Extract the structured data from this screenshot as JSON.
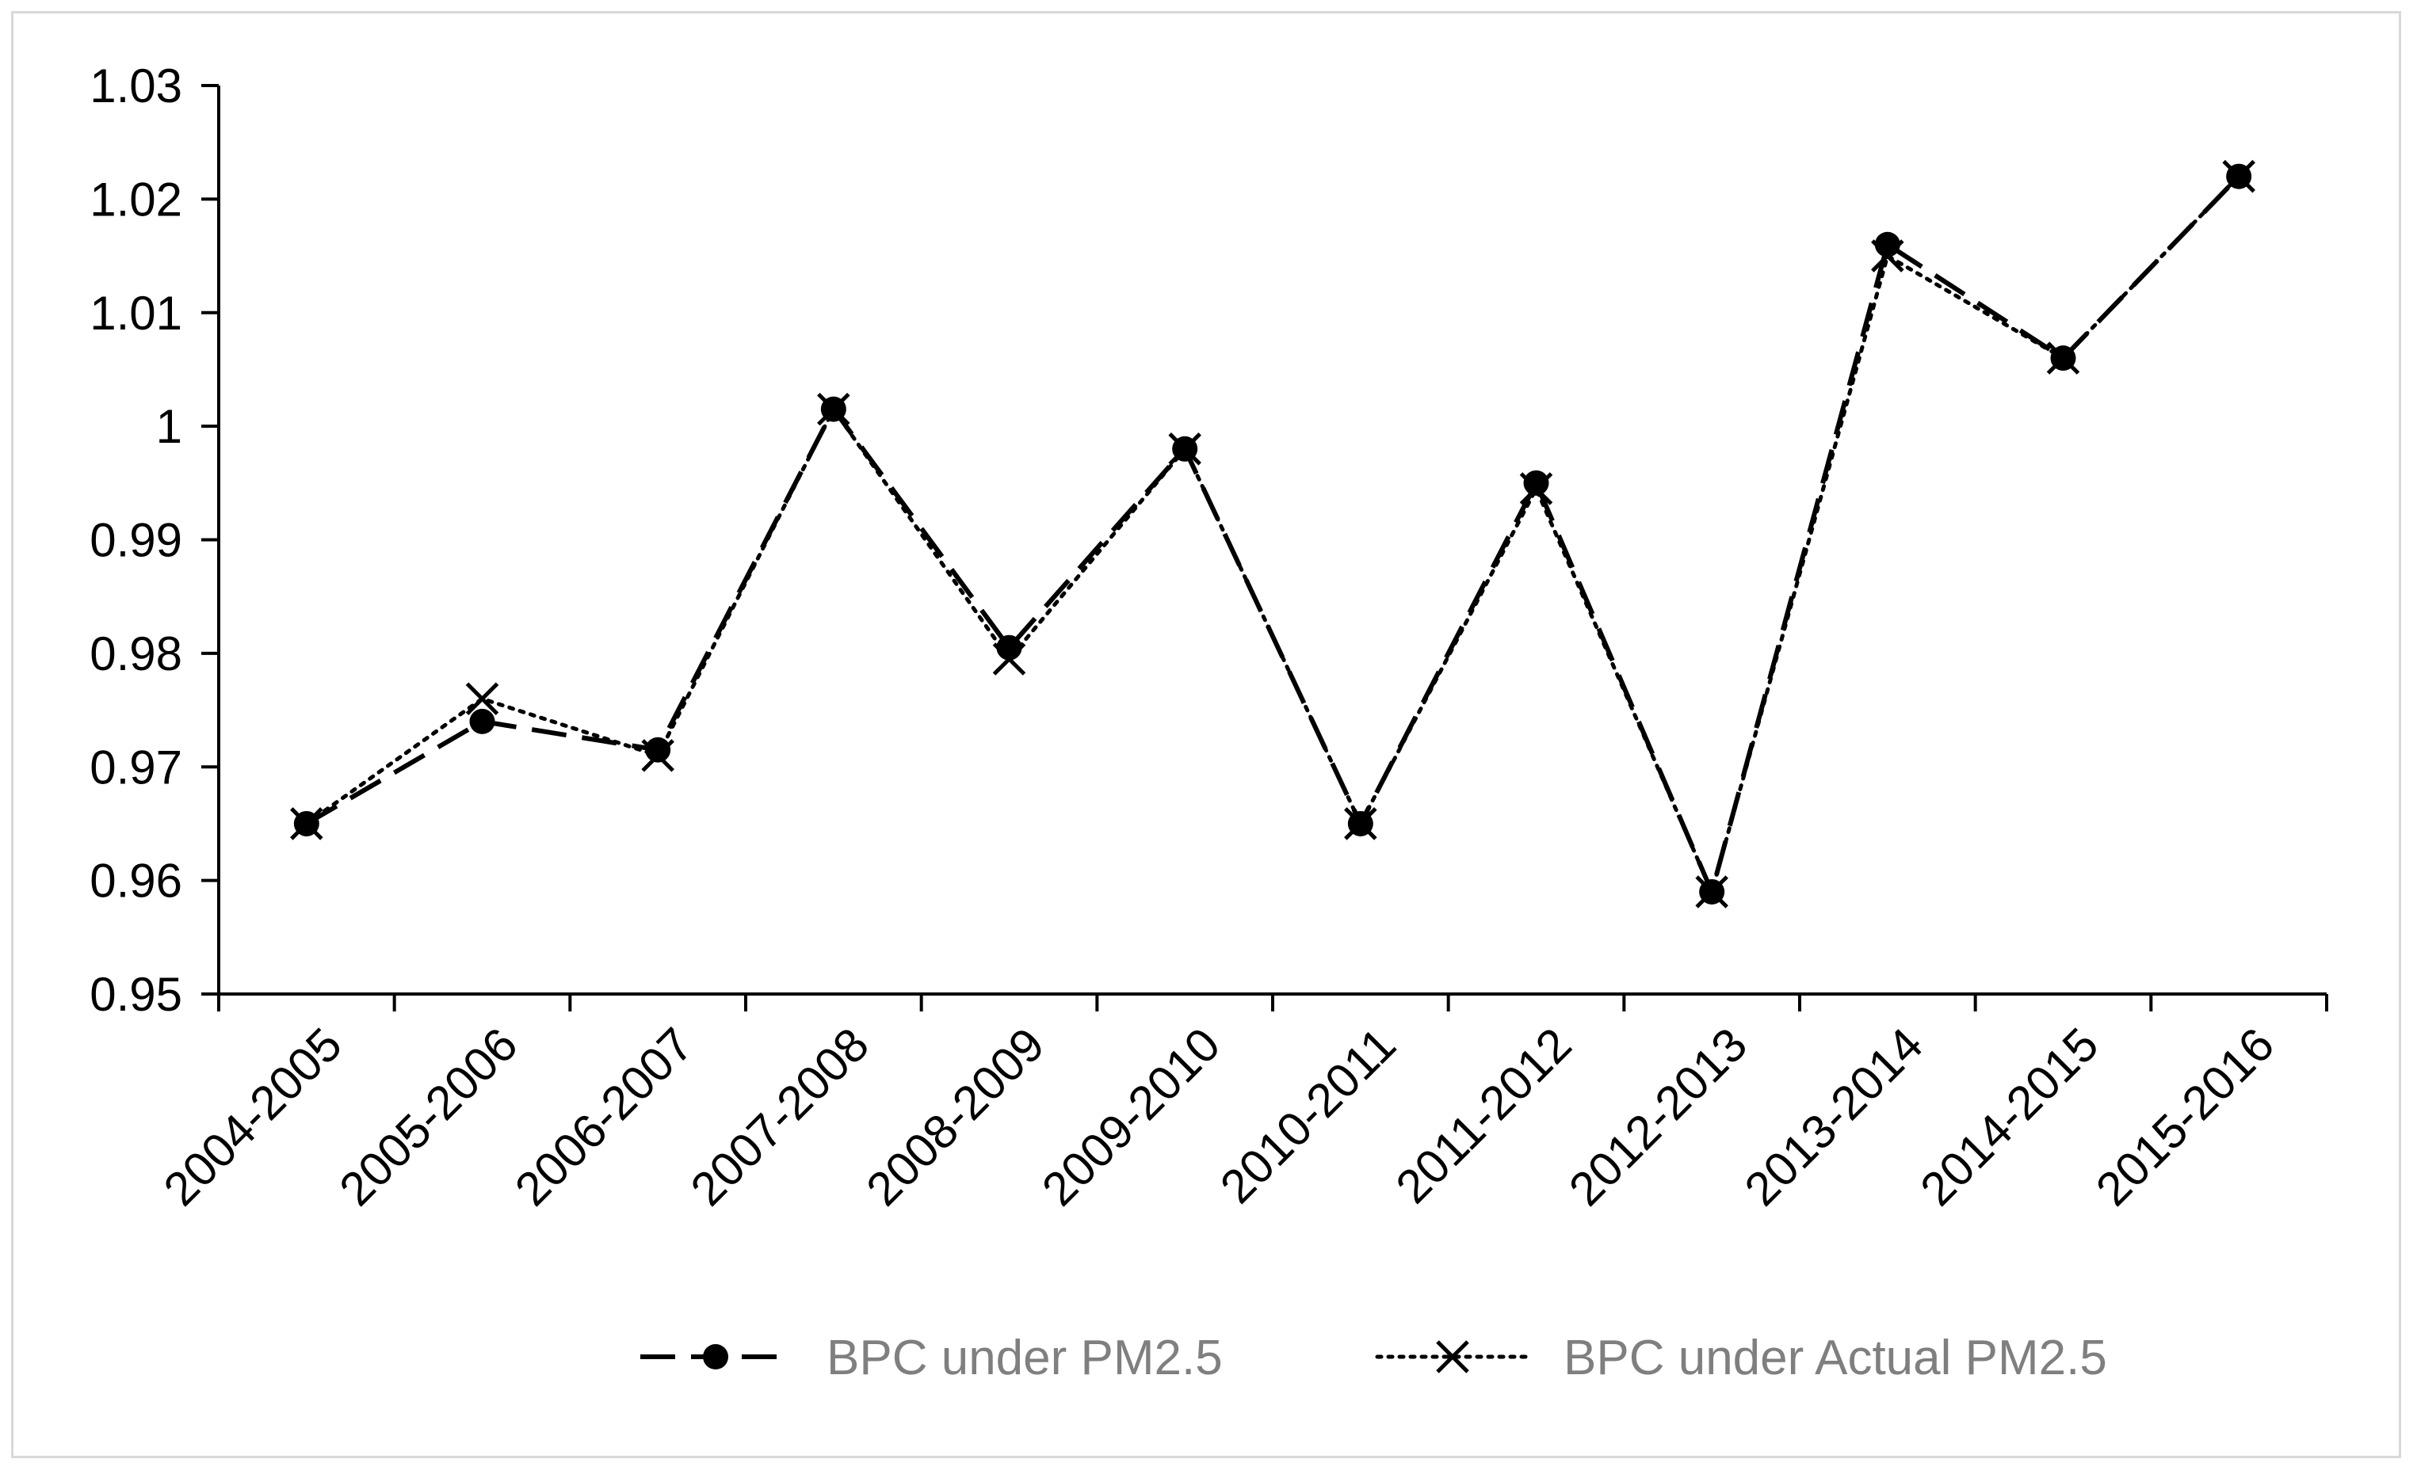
{
  "chart_data": {
    "type": "line",
    "title": "",
    "xlabel": "",
    "ylabel": "",
    "categories": [
      "2004-2005",
      "2005-2006",
      "2006-2007",
      "2007-2008",
      "2008-2009",
      "2009-2010",
      "2010-2011",
      "2011-2012",
      "2012-2013",
      "2013-2014",
      "2014-2015",
      "2015-2016"
    ],
    "ylim": [
      0.95,
      1.03
    ],
    "yticks": [
      "0.95",
      "0.96",
      "0.97",
      "0.98",
      "0.99",
      "1",
      "1.01",
      "1.02",
      "1.03"
    ],
    "grid": false,
    "legend_position": "bottom",
    "series": [
      {
        "name": "BPC under PM2.5",
        "values": [
          0.965,
          0.974,
          0.9715,
          1.0015,
          0.9805,
          0.998,
          0.965,
          0.995,
          0.959,
          1.016,
          1.006,
          1.022
        ],
        "line_style": "dashed",
        "marker": "circle",
        "color": "#000000"
      },
      {
        "name": "BPC under Actual PM2.5",
        "values": [
          0.965,
          0.976,
          0.971,
          1.0015,
          0.9795,
          0.998,
          0.965,
          0.9945,
          0.959,
          1.015,
          1.006,
          1.022
        ],
        "line_style": "dotted",
        "marker": "x",
        "color": "#000000"
      }
    ]
  }
}
